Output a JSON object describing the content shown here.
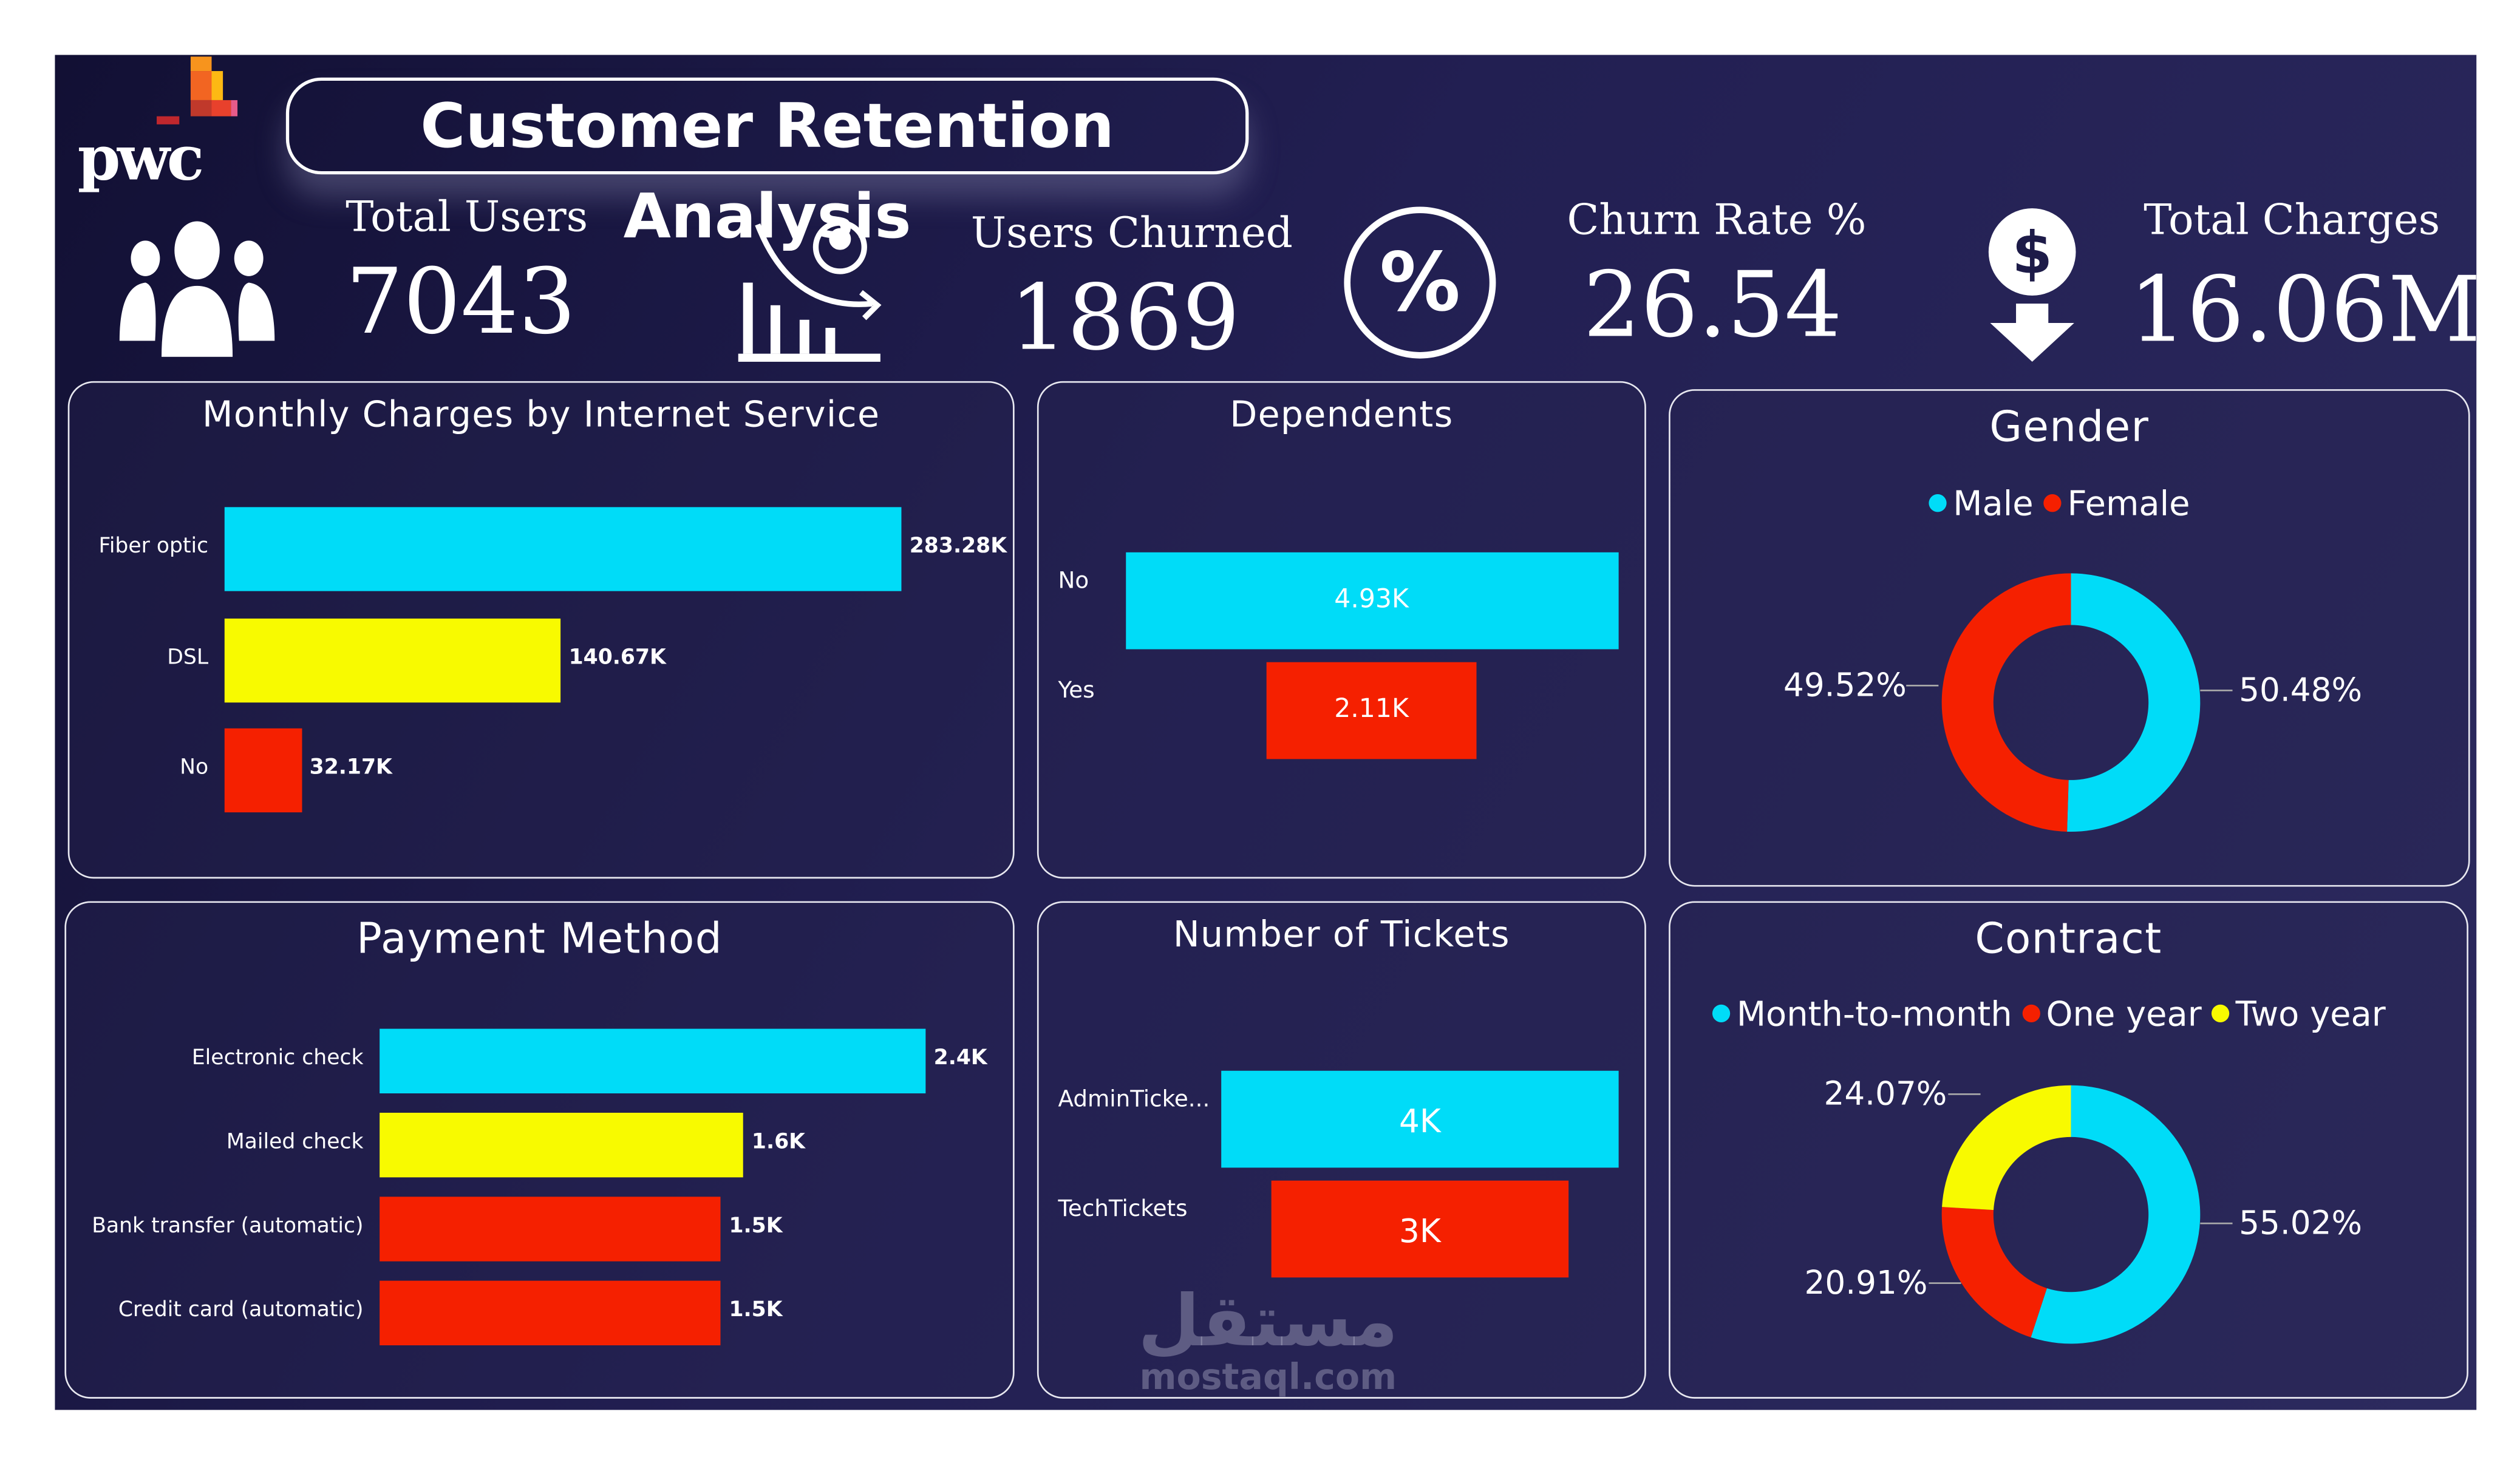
{
  "brand": {
    "logo_text": "pwc",
    "title": "Customer Retention Analysis"
  },
  "colors": {
    "cyan": "#00dcf8",
    "yellow": "#f8fa00",
    "red": "#f52000",
    "background": "#1d1b48"
  },
  "kpis": [
    {
      "label": "Total Users",
      "value": "7043",
      "icon": "users-group-icon"
    },
    {
      "label": "Users Churned",
      "value": "1869",
      "icon": "user-decline-chart-icon"
    },
    {
      "label": "Churn Rate %",
      "value": "26.54",
      "icon": "percent-circle-icon"
    },
    {
      "label": "Total Charges",
      "value": "16.06M",
      "icon": "dollar-down-arrow-icon"
    }
  ],
  "chart_data": [
    {
      "type": "bar",
      "orientation": "horizontal",
      "title": "Monthly Charges by Internet Service",
      "categories": [
        "Fiber optic",
        "DSL",
        "No"
      ],
      "values": [
        283.28,
        140.67,
        32.17
      ],
      "labels": [
        "283.28K",
        "140.67K",
        "32.17K"
      ],
      "unit": "K",
      "colors": [
        "#00dcf8",
        "#f8fa00",
        "#f52000"
      ]
    },
    {
      "type": "bar",
      "orientation": "funnel",
      "title": "Dependents",
      "categories": [
        "No",
        "Yes"
      ],
      "values": [
        4.93,
        2.11
      ],
      "labels": [
        "4.93K",
        "2.11K"
      ],
      "unit": "K",
      "colors": [
        "#00dcf8",
        "#f52000"
      ]
    },
    {
      "type": "pie",
      "donut": true,
      "title": "Gender",
      "legend": "top",
      "categories": [
        "Male",
        "Female"
      ],
      "values": [
        50.48,
        49.52
      ],
      "labels": [
        "50.48%",
        "49.52%"
      ],
      "colors": [
        "#00dcf8",
        "#f52000"
      ]
    },
    {
      "type": "bar",
      "orientation": "horizontal",
      "title": "Payment Method",
      "categories": [
        "Electronic check",
        "Mailed check",
        "Bank transfer (automatic)",
        "Credit card (automatic)"
      ],
      "values": [
        2.4,
        1.6,
        1.5,
        1.5
      ],
      "labels": [
        "2.4K",
        "1.6K",
        "1.5K",
        "1.5K"
      ],
      "unit": "K",
      "colors": [
        "#00dcf8",
        "#f8fa00",
        "#f52000",
        "#f52000"
      ]
    },
    {
      "type": "bar",
      "orientation": "funnel",
      "title": "Number of Tickets",
      "categories": [
        "AdminTicke...",
        "TechTickets"
      ],
      "values": [
        4,
        3
      ],
      "labels": [
        "4K",
        "3K"
      ],
      "unit": "K",
      "colors": [
        "#00dcf8",
        "#f52000"
      ]
    },
    {
      "type": "pie",
      "donut": true,
      "title": "Contract",
      "legend": "top",
      "categories": [
        "Month-to-month",
        "One year",
        "Two year"
      ],
      "values": [
        55.02,
        20.91,
        24.07
      ],
      "labels": [
        "55.02%",
        "20.91%",
        "24.07%"
      ],
      "colors": [
        "#00dcf8",
        "#f52000",
        "#f8fa00"
      ]
    }
  ],
  "watermark": {
    "text_ar": "مستقل",
    "text_en": "mostaql.com"
  }
}
